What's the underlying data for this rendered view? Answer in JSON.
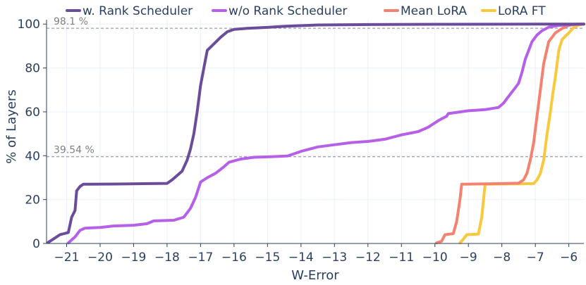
{
  "chart_data": {
    "type": "line",
    "title": "",
    "xlabel": "W-Error",
    "ylabel": "% of Layers",
    "xlim": [
      -21.6,
      -5.55
    ],
    "ylim": [
      0,
      102
    ],
    "x_ticks": [
      -21,
      -20,
      -19,
      -18,
      -17,
      -16,
      -15,
      -14,
      -13,
      -12,
      -11,
      -10,
      -9,
      -8,
      -7,
      -6
    ],
    "y_ticks": [
      0,
      20,
      40,
      60,
      80,
      100
    ],
    "x_tick_labels": [
      "−21",
      "−20",
      "−19",
      "−18",
      "−17",
      "−16",
      "−15",
      "−14",
      "−13",
      "−12",
      "−11",
      "−10",
      "−9",
      "−8",
      "−7",
      "−6"
    ],
    "y_tick_labels": [
      "0",
      "20",
      "40",
      "60",
      "80",
      "100"
    ],
    "grid": true,
    "legend_position": "top",
    "annotations": [
      {
        "text": "98.1 %",
        "y": 98.1
      },
      {
        "text": "39.54 %",
        "y": 39.54
      }
    ],
    "series": [
      {
        "name": "w. Rank Scheduler",
        "color": "#6b4c9a",
        "points": [
          [
            -21.55,
            0.5
          ],
          [
            -21.4,
            2
          ],
          [
            -21.2,
            4
          ],
          [
            -20.95,
            5
          ],
          [
            -20.85,
            12
          ],
          [
            -20.75,
            15
          ],
          [
            -20.7,
            24
          ],
          [
            -20.6,
            26
          ],
          [
            -20.5,
            27
          ],
          [
            -19.5,
            27.1
          ],
          [
            -18.5,
            27.3
          ],
          [
            -18.0,
            27.4
          ],
          [
            -17.85,
            29
          ],
          [
            -17.7,
            31
          ],
          [
            -17.55,
            33
          ],
          [
            -17.4,
            38
          ],
          [
            -17.3,
            43
          ],
          [
            -17.2,
            50
          ],
          [
            -17.1,
            60
          ],
          [
            -17.0,
            72
          ],
          [
            -16.9,
            80
          ],
          [
            -16.8,
            88
          ],
          [
            -16.6,
            91
          ],
          [
            -16.4,
            94
          ],
          [
            -16.2,
            96.5
          ],
          [
            -16.0,
            97.6
          ],
          [
            -15.6,
            98.1
          ],
          [
            -15.0,
            98.5
          ],
          [
            -14.5,
            99
          ],
          [
            -13.5,
            99.6
          ],
          [
            -12,
            99.8
          ],
          [
            -10,
            99.9
          ],
          [
            -8,
            99.95
          ],
          [
            -6.2,
            100
          ],
          [
            -5.55,
            100
          ]
        ]
      },
      {
        "name": "w/o Rank Scheduler",
        "color": "#b660e8",
        "points": [
          [
            -20.95,
            0.3
          ],
          [
            -20.75,
            3
          ],
          [
            -20.6,
            6
          ],
          [
            -20.45,
            7
          ],
          [
            -20.0,
            7.3
          ],
          [
            -19.6,
            8
          ],
          [
            -19.0,
            8.3
          ],
          [
            -18.6,
            9
          ],
          [
            -18.4,
            10.3
          ],
          [
            -17.8,
            10.6
          ],
          [
            -17.5,
            12
          ],
          [
            -17.3,
            16
          ],
          [
            -17.15,
            21
          ],
          [
            -17.0,
            28
          ],
          [
            -16.8,
            30
          ],
          [
            -16.55,
            32
          ],
          [
            -16.3,
            35
          ],
          [
            -16.15,
            37
          ],
          [
            -15.8,
            38.5
          ],
          [
            -15.4,
            39.3
          ],
          [
            -15.0,
            39.5
          ],
          [
            -14.4,
            39.9
          ],
          [
            -14.0,
            42
          ],
          [
            -13.5,
            44
          ],
          [
            -13.0,
            45
          ],
          [
            -12.5,
            46
          ],
          [
            -12.0,
            46.5
          ],
          [
            -11.5,
            47.5
          ],
          [
            -11.0,
            49.5
          ],
          [
            -10.5,
            51
          ],
          [
            -10.2,
            53
          ],
          [
            -9.9,
            56
          ],
          [
            -9.65,
            58
          ],
          [
            -9.6,
            59.2
          ],
          [
            -9.0,
            60.5
          ],
          [
            -8.5,
            61
          ],
          [
            -8.1,
            62
          ],
          [
            -7.95,
            64
          ],
          [
            -7.85,
            66
          ],
          [
            -7.65,
            70
          ],
          [
            -7.5,
            73
          ],
          [
            -7.4,
            78
          ],
          [
            -7.3,
            84
          ],
          [
            -7.2,
            88
          ],
          [
            -7.1,
            92
          ],
          [
            -6.95,
            95
          ],
          [
            -6.8,
            97
          ],
          [
            -6.6,
            98.6
          ],
          [
            -6.3,
            99.4
          ],
          [
            -5.9,
            99.8
          ],
          [
            -5.55,
            100
          ]
        ]
      },
      {
        "name": "Mean LoRA",
        "color": "#f48270",
        "points": [
          [
            -9.95,
            0.3
          ],
          [
            -9.8,
            1
          ],
          [
            -9.7,
            4
          ],
          [
            -9.45,
            4.5
          ],
          [
            -9.35,
            10
          ],
          [
            -9.25,
            20
          ],
          [
            -9.2,
            27
          ],
          [
            -8.8,
            27.1
          ],
          [
            -8.0,
            27.3
          ],
          [
            -7.5,
            27.5
          ],
          [
            -7.35,
            29
          ],
          [
            -7.25,
            32
          ],
          [
            -7.15,
            38
          ],
          [
            -7.05,
            46
          ],
          [
            -6.95,
            58
          ],
          [
            -6.85,
            70
          ],
          [
            -6.75,
            82
          ],
          [
            -6.6,
            92
          ],
          [
            -6.4,
            96
          ],
          [
            -6.2,
            98
          ],
          [
            -6.0,
            99.4
          ],
          [
            -5.75,
            100
          ],
          [
            -5.55,
            100
          ]
        ]
      },
      {
        "name": "LoRA FT",
        "color": "#fac83c",
        "points": [
          [
            -9.25,
            0.3
          ],
          [
            -9.15,
            2
          ],
          [
            -9.05,
            4
          ],
          [
            -8.7,
            4.3
          ],
          [
            -8.6,
            12
          ],
          [
            -8.5,
            27
          ],
          [
            -8.2,
            27.1
          ],
          [
            -7.5,
            27.2
          ],
          [
            -7.05,
            27.3
          ],
          [
            -6.95,
            29
          ],
          [
            -6.85,
            32
          ],
          [
            -6.75,
            38
          ],
          [
            -6.65,
            50
          ],
          [
            -6.55,
            60
          ],
          [
            -6.48,
            68
          ],
          [
            -6.4,
            76
          ],
          [
            -6.3,
            88
          ],
          [
            -6.2,
            93
          ],
          [
            -6.0,
            96
          ],
          [
            -5.85,
            98.5
          ],
          [
            -5.7,
            99.6
          ],
          [
            -5.55,
            100
          ]
        ]
      }
    ]
  }
}
